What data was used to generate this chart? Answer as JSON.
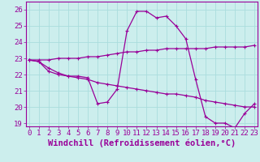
{
  "xlabel": "Windchill (Refroidissement éolien,°C)",
  "bg_color": "#cceeed",
  "grid_color": "#aadddd",
  "line_color": "#990099",
  "x_ticks": [
    0,
    1,
    2,
    3,
    4,
    5,
    6,
    7,
    8,
    9,
    10,
    11,
    12,
    13,
    14,
    15,
    16,
    17,
    18,
    19,
    20,
    21,
    22,
    23
  ],
  "ylim": [
    18.8,
    26.5
  ],
  "xlim": [
    -0.3,
    23.3
  ],
  "line1_x": [
    0,
    1,
    2,
    3,
    4,
    5,
    6,
    7,
    8,
    9,
    10,
    11,
    12,
    13,
    14,
    15,
    16,
    17,
    18,
    19,
    20,
    21,
    22,
    23
  ],
  "line1_y": [
    22.9,
    22.8,
    22.2,
    22.0,
    21.9,
    21.9,
    21.8,
    20.2,
    20.3,
    21.1,
    24.7,
    25.9,
    25.9,
    25.5,
    25.6,
    25.0,
    24.2,
    21.7,
    19.4,
    19.0,
    19.0,
    18.7,
    19.6,
    20.2
  ],
  "line2_x": [
    0,
    1,
    2,
    3,
    4,
    5,
    6,
    7,
    8,
    9,
    10,
    11,
    12,
    13,
    14,
    15,
    16,
    17,
    18,
    19,
    20,
    21,
    22,
    23
  ],
  "line2_y": [
    22.9,
    22.8,
    22.4,
    22.1,
    21.9,
    21.8,
    21.7,
    21.5,
    21.4,
    21.3,
    21.2,
    21.1,
    21.0,
    20.9,
    20.8,
    20.8,
    20.7,
    20.6,
    20.4,
    20.3,
    20.2,
    20.1,
    20.0,
    20.0
  ],
  "line3_x": [
    0,
    1,
    2,
    3,
    4,
    5,
    6,
    7,
    8,
    9,
    10,
    11,
    12,
    13,
    14,
    15,
    16,
    17,
    18,
    19,
    20,
    21,
    22,
    23
  ],
  "line3_y": [
    22.9,
    22.9,
    22.9,
    23.0,
    23.0,
    23.0,
    23.1,
    23.1,
    23.2,
    23.3,
    23.4,
    23.4,
    23.5,
    23.5,
    23.6,
    23.6,
    23.6,
    23.6,
    23.6,
    23.7,
    23.7,
    23.7,
    23.7,
    23.8
  ],
  "y_ticks": [
    19,
    20,
    21,
    22,
    23,
    24,
    25,
    26
  ],
  "tick_fontsize": 6.5,
  "xlabel_fontsize": 7.5
}
